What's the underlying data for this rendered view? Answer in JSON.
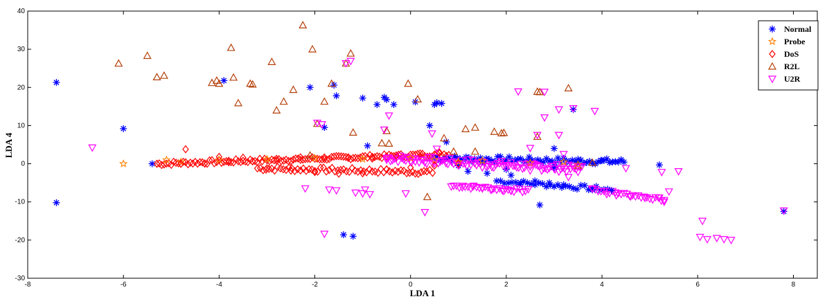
{
  "chart_data": {
    "type": "scatter",
    "title": "",
    "xlabel": "LDA 1",
    "ylabel": "LDA 4",
    "xlim": [
      -8,
      8.5
    ],
    "ylim": [
      -30,
      40
    ],
    "xticks": [
      -8,
      -6,
      -4,
      -2,
      0,
      2,
      4,
      6,
      8
    ],
    "yticks": [
      -30,
      -20,
      -10,
      0,
      10,
      20,
      30,
      40
    ],
    "legend_position": "top-right",
    "series": [
      {
        "name": "Normal",
        "marker": "asterisk",
        "color": "#0000ff",
        "points": [
          [
            -7.4,
            21.3
          ],
          [
            -7.4,
            -10.2
          ],
          [
            -6.0,
            9.2
          ],
          [
            -5.4,
            0
          ],
          [
            -3.9,
            21.8
          ],
          [
            -2.1,
            20
          ],
          [
            -1.8,
            9.5
          ],
          [
            -1.6,
            20.6
          ],
          [
            -1.55,
            17.8
          ],
          [
            -1.4,
            -18.6
          ],
          [
            -1.2,
            -19
          ],
          [
            -1.0,
            17.2
          ],
          [
            -0.9,
            4.7
          ],
          [
            -0.7,
            15.5
          ],
          [
            -0.55,
            17.4
          ],
          [
            -0.5,
            16.8
          ],
          [
            -0.35,
            15.5
          ],
          [
            0.1,
            16.2
          ],
          [
            0.4,
            10
          ],
          [
            0.5,
            15.5
          ],
          [
            0.55,
            16
          ],
          [
            0.65,
            15.8
          ],
          [
            0.75,
            5.7
          ],
          [
            1.2,
            -2
          ],
          [
            1.6,
            -2.5
          ],
          [
            2.1,
            -3
          ],
          [
            2.3,
            -5
          ],
          [
            2.6,
            -4.5
          ],
          [
            2.7,
            -10.8
          ],
          [
            2.9,
            -5
          ],
          [
            3.0,
            4
          ],
          [
            3.2,
            -5.5
          ],
          [
            3.4,
            14.2
          ],
          [
            3.8,
            -6.8
          ],
          [
            4.2,
            -7
          ],
          [
            4.4,
            1
          ],
          [
            5.2,
            -0.3
          ],
          [
            7.8,
            -12.5
          ],
          [
            1.5,
            0.5
          ],
          [
            2.5,
            1
          ],
          [
            3.5,
            0.5
          ],
          [
            4.0,
            0.8
          ],
          [
            2.0,
            -1.5
          ],
          [
            3.0,
            -1
          ],
          [
            1.0,
            -0.5
          ]
        ]
      },
      {
        "name": "Probe",
        "marker": "star",
        "color": "#ff8000",
        "points": [
          [
            -6.0,
            0
          ],
          [
            -5.1,
            1
          ],
          [
            -4.8,
            0.5
          ],
          [
            -4.0,
            1
          ],
          [
            -3.0,
            1.2
          ],
          [
            -2.0,
            1.5
          ],
          [
            -1.0,
            1.2
          ],
          [
            0.0,
            1.5
          ],
          [
            0.5,
            1
          ],
          [
            1.0,
            0.5
          ],
          [
            1.5,
            0.8
          ],
          [
            2.5,
            0.2
          ],
          [
            3.2,
            0.5
          ],
          [
            3.5,
            -0.2
          ]
        ]
      },
      {
        "name": "DoS",
        "marker": "diamond",
        "color": "#ff0000",
        "points": [
          [
            -4.7,
            3.8
          ],
          [
            -5.3,
            0
          ],
          [
            -4.8,
            0
          ],
          [
            -4.3,
            0
          ],
          [
            -3.8,
            0.4
          ],
          [
            -3.3,
            0.6
          ],
          [
            -2.8,
            0.8
          ],
          [
            -2.3,
            1
          ],
          [
            -1.8,
            1.2
          ],
          [
            -1.3,
            1.5
          ],
          [
            -0.8,
            1.8
          ],
          [
            -0.3,
            2.2
          ],
          [
            0.2,
            2.7
          ],
          [
            0.6,
            3.0
          ],
          [
            -3.0,
            -1.2
          ],
          [
            -2.5,
            -1.8
          ],
          [
            -2.0,
            -2.2
          ],
          [
            -1.5,
            -2.6
          ],
          [
            -1.0,
            -2.5
          ],
          [
            -0.5,
            -1.5
          ],
          [
            0.0,
            -1
          ],
          [
            0.5,
            -0.5
          ],
          [
            1.0,
            0
          ],
          [
            -3.5,
            1.6
          ],
          [
            -4.0,
            1.8
          ]
        ]
      },
      {
        "name": "R2L",
        "marker": "triangle-up",
        "color": "#b5400a",
        "points": [
          [
            -6.1,
            26.3
          ],
          [
            -5.5,
            28.3
          ],
          [
            -5.3,
            22.7
          ],
          [
            -5.15,
            23.1
          ],
          [
            -4.15,
            21.2
          ],
          [
            -4.05,
            21.8
          ],
          [
            -4.0,
            21.0
          ],
          [
            -3.75,
            30.4
          ],
          [
            -3.7,
            22.6
          ],
          [
            -3.6,
            15.9
          ],
          [
            -3.35,
            21.0
          ],
          [
            -3.3,
            20.8
          ],
          [
            -2.9,
            26.7
          ],
          [
            -2.8,
            14
          ],
          [
            -2.65,
            16.3
          ],
          [
            -2.45,
            19.4
          ],
          [
            -2.25,
            36.3
          ],
          [
            -2.05,
            30
          ],
          [
            -2.1,
            2.2
          ],
          [
            -1.95,
            10.5
          ],
          [
            -1.8,
            16.3
          ],
          [
            -1.65,
            21
          ],
          [
            -1.35,
            26.3
          ],
          [
            -1.25,
            28.9
          ],
          [
            -1.2,
            8.2
          ],
          [
            -0.6,
            5.4
          ],
          [
            -0.45,
            5.3
          ],
          [
            -0.5,
            8.6
          ],
          [
            -0.05,
            21
          ],
          [
            0.15,
            16.9
          ],
          [
            0.35,
            -8.7
          ],
          [
            0.7,
            6.7
          ],
          [
            1.15,
            9.1
          ],
          [
            1.35,
            9.5
          ],
          [
            1.35,
            3.2
          ],
          [
            1.75,
            8.4
          ],
          [
            1.9,
            8
          ],
          [
            1.95,
            8.1
          ],
          [
            2.65,
            7.1
          ],
          [
            2.65,
            18.9
          ],
          [
            2.7,
            18.8
          ],
          [
            3.3,
            19.8
          ],
          [
            3.5,
            -0.5
          ],
          [
            3.8,
            0.3
          ],
          [
            0.9,
            3.2
          ]
        ]
      },
      {
        "name": "U2R",
        "marker": "triangle-down",
        "color": "#ff00ff",
        "points": [
          [
            -6.65,
            4.2
          ],
          [
            -2.2,
            -6.5
          ],
          [
            -1.95,
            10.7
          ],
          [
            -1.85,
            10.3
          ],
          [
            -1.8,
            -18.4
          ],
          [
            -1.7,
            -6.8
          ],
          [
            -1.55,
            -7
          ],
          [
            -1.35,
            26.3
          ],
          [
            -1.25,
            26.9
          ],
          [
            -1.15,
            -7.6
          ],
          [
            -1.0,
            -7.8
          ],
          [
            -0.95,
            -6.8
          ],
          [
            -0.85,
            -8
          ],
          [
            -0.55,
            8.9
          ],
          [
            -0.45,
            12.6
          ],
          [
            -0.1,
            -7.8
          ],
          [
            0.3,
            -12.7
          ],
          [
            0.45,
            7.9
          ],
          [
            0.55,
            3.9
          ],
          [
            0.85,
            -6
          ],
          [
            1.1,
            -5.8
          ],
          [
            1.3,
            -6
          ],
          [
            1.5,
            -6.3
          ],
          [
            1.7,
            -6.8
          ],
          [
            1.95,
            -7.2
          ],
          [
            2.1,
            -7
          ],
          [
            2.25,
            18.9
          ],
          [
            2.5,
            4.1
          ],
          [
            2.65,
            7.5
          ],
          [
            2.8,
            12.1
          ],
          [
            2.8,
            18.8
          ],
          [
            3.1,
            14.2
          ],
          [
            3.1,
            7.5
          ],
          [
            3.2,
            2.5
          ],
          [
            3.3,
            -3.5
          ],
          [
            3.4,
            14.5
          ],
          [
            3.8,
            -6.5
          ],
          [
            3.85,
            13.8
          ],
          [
            4.1,
            -8
          ],
          [
            4.3,
            -8.3
          ],
          [
            4.6,
            -8.6
          ],
          [
            4.9,
            -9
          ],
          [
            5.2,
            -8.9
          ],
          [
            5.3,
            -10
          ],
          [
            5.4,
            -7.3
          ],
          [
            4.5,
            -1.2
          ],
          [
            5.25,
            -2.2
          ],
          [
            5.6,
            -2
          ],
          [
            6.1,
            -15
          ],
          [
            6.05,
            -19.2
          ],
          [
            6.2,
            -19.8
          ],
          [
            6.4,
            -19.5
          ],
          [
            6.55,
            -19.8
          ],
          [
            6.7,
            -20
          ],
          [
            7.8,
            -12.3
          ],
          [
            -0.5,
            1
          ],
          [
            0.0,
            0.5
          ],
          [
            0.5,
            0
          ],
          [
            1.0,
            -0.5
          ],
          [
            1.5,
            -1
          ],
          [
            2.0,
            -1
          ],
          [
            2.5,
            -0.8
          ],
          [
            3.0,
            -1.3
          ],
          [
            3.5,
            -0.8
          ],
          [
            2.5,
            -1.8
          ]
        ]
      }
    ]
  }
}
